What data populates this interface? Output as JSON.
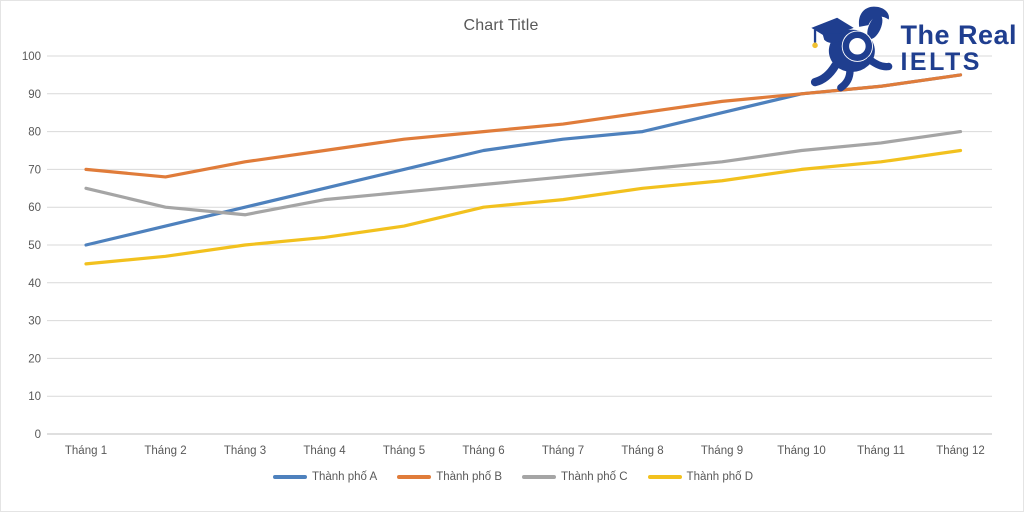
{
  "chart_data": {
    "type": "line",
    "title": "Chart Title",
    "categories": [
      "Tháng 1",
      "Tháng 2",
      "Tháng 3",
      "Tháng 4",
      "Tháng 5",
      "Tháng 6",
      "Tháng 7",
      "Tháng 8",
      "Tháng 9",
      "Tháng 10",
      "Tháng 11",
      "Tháng 12"
    ],
    "series": [
      {
        "name": "Thành phố A",
        "color": "#4E81BD",
        "values": [
          50,
          55,
          60,
          65,
          70,
          75,
          78,
          80,
          85,
          90,
          92,
          95
        ]
      },
      {
        "name": "Thành phố B",
        "color": "#E07C3A",
        "values": [
          70,
          68,
          72,
          75,
          78,
          80,
          82,
          85,
          88,
          90,
          92,
          95
        ]
      },
      {
        "name": "Thành phố C",
        "color": "#A5A5A5",
        "values": [
          65,
          60,
          58,
          62,
          64,
          66,
          68,
          70,
          72,
          75,
          77,
          80
        ]
      },
      {
        "name": "Thành phố D",
        "color": "#F2C11E",
        "values": [
          45,
          47,
          50,
          52,
          55,
          60,
          62,
          65,
          67,
          70,
          72,
          75
        ]
      }
    ],
    "xlabel": "",
    "ylabel": "",
    "ylim": [
      0,
      100
    ],
    "ytick_step": 10,
    "yticks": [
      0,
      10,
      20,
      30,
      40,
      50,
      60,
      70,
      80,
      90,
      100
    ],
    "grid": true,
    "legend_position": "bottom",
    "gridline_color": "#d9d9d9",
    "axisline_color": "#bfbfbf",
    "text_color": "#595959"
  },
  "logo": {
    "line1": "The Real",
    "line2": "IELTS",
    "color": "#1f3e8f",
    "tassel_color": "#f0c030"
  }
}
